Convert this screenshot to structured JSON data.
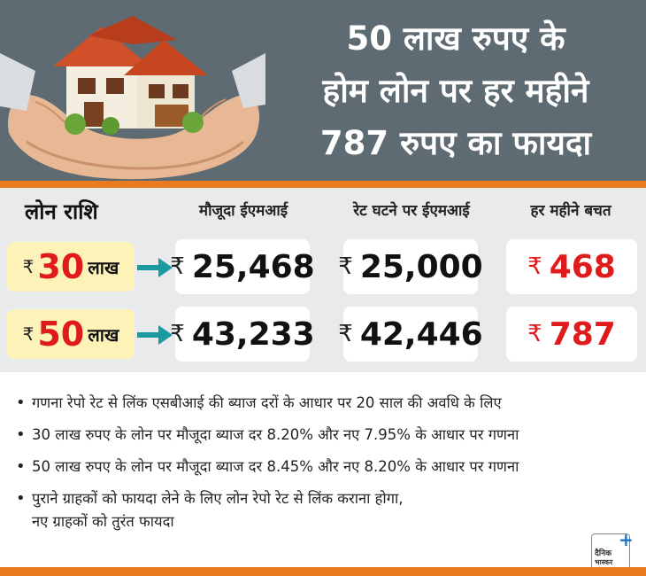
{
  "title": {
    "line1": "50 लाख रुपए के",
    "line2": "होम लोन पर हर महीने",
    "line3": "787 रुपए का फायदा"
  },
  "table": {
    "headers": {
      "amount": "लोन राशि",
      "current_emi": "मौजूदा ईएमआई",
      "new_emi": "रेट घटने पर ईएमआई",
      "saving": "हर महीने बचत"
    },
    "currency_symbol": "₹",
    "rows": [
      {
        "loan_value": "30",
        "loan_unit": "लाख",
        "current_emi": "25,468",
        "new_emi": "25,000",
        "saving": "468"
      },
      {
        "loan_value": "50",
        "loan_unit": "लाख",
        "current_emi": "43,233",
        "new_emi": "42,446",
        "saving": "787"
      }
    ]
  },
  "notes": [
    "गणना रेपो रेट से लिंक एसबीआई की ब्याज दरों के आधार पर 20 साल की अवधि के लिए",
    "30 लाख रुपए के लोन पर मौजूदा ब्याज दर 8.20% और नए 7.95% के आधार पर गणना",
    "50 लाख रुपए के लोन पर मौजूदा ब्याज दर 8.45% और नए 8.20% के आधार पर गणना"
  ],
  "note4": {
    "line1": "पुराने ग्राहकों को फायदा लेने के लिए लोन रेपो रेट से लिंक कराना होगा,",
    "line2": "नए ग्राहकों को तुरंत फायदा"
  },
  "logo": {
    "line1": "दैनिक",
    "line2": "भास्कर"
  },
  "colors": {
    "header_bg": "#5f6b73",
    "accent_orange": "#ea7a1f",
    "highlight_red": "#e01b1b",
    "arrow_teal": "#1a9aa0",
    "loan_pill_bg": "#fdf3b8"
  }
}
